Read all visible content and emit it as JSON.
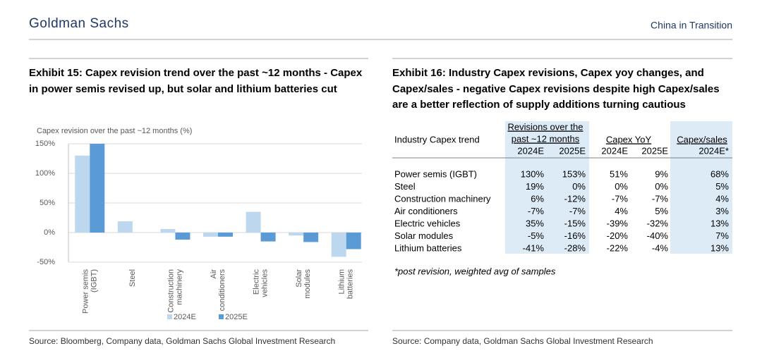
{
  "header": {
    "brand": "Goldman Sachs",
    "section": "China in Transition"
  },
  "exhibit_15": {
    "title": [
      "Exhibit 15: Capex revision trend over the past ~12 months  - Capex",
      "in power semis revised up, but solar and lithium batteries cut"
    ],
    "source": "Source: Bloomberg, Company data, Goldman Sachs Global Investment Research"
  },
  "chart_data": {
    "type": "bar",
    "y_title": "Capex revision over the past ~12 months (%)",
    "categories": [
      "Power semis\n(IGBT)",
      "Steel",
      "Construction\nmachinery",
      "Air\nconditioners",
      "Electric\nvehicles",
      "Solar\nmodules",
      "Lithium\nbatteries"
    ],
    "series": [
      {
        "name": "2024E",
        "color": "#bdd7ee",
        "values": [
          130,
          19,
          6,
          -7,
          35,
          -5,
          -41
        ]
      },
      {
        "name": "2025E",
        "color": "#5b9bd5",
        "values": [
          153,
          0,
          -12,
          -7,
          -15,
          -16,
          -28
        ]
      }
    ],
    "ylim": [
      -50,
      150
    ],
    "yticks": [
      {
        "value": -50,
        "label": "-50%"
      },
      {
        "value": 0,
        "label": "0%"
      },
      {
        "value": 50,
        "label": "50%"
      },
      {
        "value": 100,
        "label": "100%"
      },
      {
        "value": 150,
        "label": "150%"
      }
    ],
    "grid": true,
    "legend": "bottom"
  },
  "exhibit_16": {
    "title": [
      "Exhibit 16: Industry Capex revisions, Capex yoy changes, and",
      "Capex/sales - negative Capex revisions despite high Capex/sales",
      "are a better reflection of supply additions turning cautious"
    ],
    "footnote": "*post revision, weighted avg of samples",
    "source": "Source: Company data, Goldman Sachs Global Investment Research"
  },
  "table": {
    "row_header": "Industry Capex trend",
    "groups": [
      "Revisions over the\npast ~12 months",
      "Capex YoY",
      "Capex/sales"
    ],
    "columns": [
      "2024E",
      "2025E",
      "2024E",
      "2025E",
      "2024E*"
    ],
    "rows": [
      [
        "Power semis (IGBT)",
        "130%",
        "153%",
        "51%",
        "9%",
        "68%"
      ],
      [
        "Steel",
        "19%",
        "0%",
        "0%",
        "0%",
        "5%"
      ],
      [
        "Construction machinery",
        "6%",
        "-12%",
        "-7%",
        "-7%",
        "4%"
      ],
      [
        "Air conditioners",
        "-7%",
        "-7%",
        "4%",
        "5%",
        "3%"
      ],
      [
        "Electric vehicles",
        "35%",
        "-15%",
        "-39%",
        "-32%",
        "13%"
      ],
      [
        "Solar modules",
        "-5%",
        "-16%",
        "-20%",
        "-40%",
        "7%"
      ],
      [
        "Lithium batteries",
        "-41%",
        "-28%",
        "-22%",
        "-4%",
        "13%"
      ]
    ]
  }
}
